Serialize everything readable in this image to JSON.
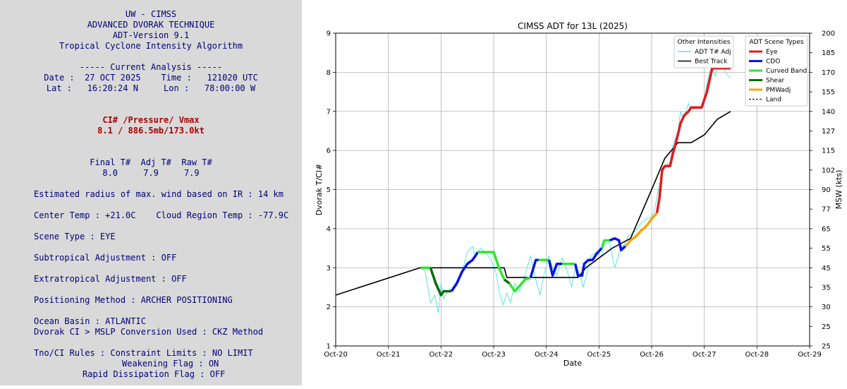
{
  "analysis_panel": {
    "header1": "UW - CIMSS",
    "header2": "ADVANCED DVORAK TECHNIQUE",
    "header3": "ADT-Version 9.1",
    "header4": "Tropical Cyclone Intensity Algorithm",
    "current_analysis": "----- Current Analysis -----",
    "date_time": "Date :  27 OCT 2025    Time :   121020 UTC",
    "lat_lon": "Lat :   16:20:24 N     Lon :   78:00:00 W",
    "ci_header": "CI# /Pressure/ Vmax",
    "ci_values": "8.1 / 886.5mb/173.0kt",
    "tnum_header": "Final T#  Adj T#  Raw T#",
    "tnum_values": "8.0     7.9     7.9",
    "radius": "Estimated radius of max. wind based on IR : 14 km",
    "temps": "Center Temp : +21.0C    Cloud Region Temp : -77.9C",
    "scene_type": "Scene Type : EYE",
    "subtropical": "Subtropical Adjustment : OFF",
    "extratropical": "Extratropical Adjustment : OFF",
    "positioning": "Positioning Method : ARCHER POSITIONING",
    "ocean_basin": "Ocean Basin : ATLANTIC",
    "conversion": "Dvorak CI > MSLP Conversion Used : CKZ Method",
    "tno_rules": "Tno/CI Rules : Constraint Limits : NO LIMIT",
    "weakening": "Weakening Flag : ON",
    "rapid": "Rapid Dissipation Flag : OFF"
  },
  "chart_data": {
    "type": "line",
    "title": "CIMSS ADT for 13L (2025)",
    "xlabel": "Date",
    "ylabel": "Dvorak T/CI#",
    "ylabel_right": "MSW (kts)",
    "xlim": [
      0,
      9
    ],
    "ylim": [
      1,
      9
    ],
    "x_ticks": [
      "Oct-20",
      "Oct-21",
      "Oct-22",
      "Oct-23",
      "Oct-24",
      "Oct-25",
      "Oct-26",
      "Oct-27",
      "Oct-28",
      "Oct-29"
    ],
    "y_ticks": [
      "1",
      "2",
      "3",
      "4",
      "5",
      "6",
      "7",
      "8",
      "9"
    ],
    "y2_ticks": [
      {
        "v": 1,
        "t": "25"
      },
      {
        "v": 1.5,
        "t": "25"
      },
      {
        "v": 2,
        "t": "30"
      },
      {
        "v": 2.5,
        "t": "35"
      },
      {
        "v": 3,
        "t": "45"
      },
      {
        "v": 3.5,
        "t": "55"
      },
      {
        "v": 4,
        "t": "65"
      },
      {
        "v": 4.5,
        "t": "77"
      },
      {
        "v": 5,
        "t": "90"
      },
      {
        "v": 5.5,
        "t": "102"
      },
      {
        "v": 6,
        "t": "115"
      },
      {
        "v": 6.5,
        "t": "127"
      },
      {
        "v": 7,
        "t": "140"
      },
      {
        "v": 7.5,
        "t": "155"
      },
      {
        "v": 8,
        "t": "170"
      },
      {
        "v": 8.5,
        "t": "185"
      },
      {
        "v": 9,
        "t": "200"
      }
    ],
    "grid": true,
    "legend_intensity": {
      "title": "Other Intensities",
      "items": [
        {
          "label": "ADT T# Adj",
          "color": "#5fe3e3",
          "dash": ""
        },
        {
          "label": "Best Track",
          "color": "#000000",
          "dash": ""
        }
      ]
    },
    "legend_scene": {
      "title": "ADT Scene Types",
      "items": [
        {
          "label": "Eye",
          "color": "#e31a1c",
          "dash": ""
        },
        {
          "label": "CDO",
          "color": "#0a14e0",
          "dash": ""
        },
        {
          "label": "Curved Band",
          "color": "#2ee82e",
          "dash": ""
        },
        {
          "label": "Shear",
          "color": "#0b6b0b",
          "dash": ""
        },
        {
          "label": "PMWadj",
          "color": "#f5a30c",
          "dash": ""
        },
        {
          "label": "Land",
          "color": "#000000",
          "dash": "3,2"
        }
      ]
    },
    "best_track": [
      [
        0,
        2.3
      ],
      [
        1.6,
        3.0
      ],
      [
        3.2,
        3.0
      ],
      [
        3.25,
        2.75
      ],
      [
        4.6,
        2.75
      ],
      [
        4.75,
        3.0
      ],
      [
        5.25,
        3.5
      ],
      [
        5.6,
        3.75
      ],
      [
        6.0,
        5.0
      ],
      [
        6.25,
        5.8
      ],
      [
        6.5,
        6.2
      ],
      [
        6.75,
        6.2
      ],
      [
        7.0,
        6.4
      ],
      [
        7.25,
        6.8
      ],
      [
        7.5,
        7.0
      ]
    ],
    "adt_raw": [
      [
        1.62,
        3.0
      ],
      [
        1.7,
        2.9
      ],
      [
        1.75,
        2.5
      ],
      [
        1.8,
        2.1
      ],
      [
        1.88,
        2.3
      ],
      [
        1.95,
        1.85
      ],
      [
        2.0,
        2.6
      ],
      [
        2.05,
        2.2
      ],
      [
        2.12,
        2.4
      ],
      [
        2.2,
        2.45
      ],
      [
        2.3,
        2.65
      ],
      [
        2.4,
        2.9
      ],
      [
        2.5,
        3.4
      ],
      [
        2.6,
        3.55
      ],
      [
        2.65,
        3.3
      ],
      [
        2.75,
        3.5
      ],
      [
        2.85,
        3.4
      ],
      [
        2.95,
        3.2
      ],
      [
        3.05,
        2.85
      ],
      [
        3.1,
        2.4
      ],
      [
        3.18,
        2.05
      ],
      [
        3.25,
        2.35
      ],
      [
        3.32,
        2.1
      ],
      [
        3.4,
        2.6
      ],
      [
        3.5,
        2.4
      ],
      [
        3.6,
        2.85
      ],
      [
        3.7,
        3.3
      ],
      [
        3.8,
        2.7
      ],
      [
        3.88,
        2.3
      ],
      [
        3.95,
        2.8
      ],
      [
        4.05,
        3.3
      ],
      [
        4.12,
        3.0
      ],
      [
        4.2,
        2.8
      ],
      [
        4.3,
        3.25
      ],
      [
        4.4,
        2.9
      ],
      [
        4.48,
        2.5
      ],
      [
        4.55,
        3.0
      ],
      [
        4.62,
        2.9
      ],
      [
        4.7,
        2.5
      ],
      [
        4.78,
        2.9
      ],
      [
        4.85,
        3.3
      ],
      [
        4.95,
        3.4
      ],
      [
        5.05,
        3.3
      ],
      [
        5.1,
        3.6
      ],
      [
        5.2,
        3.65
      ],
      [
        5.3,
        3.0
      ],
      [
        5.4,
        3.45
      ],
      [
        5.5,
        3.65
      ],
      [
        5.55,
        3.8
      ],
      [
        5.7,
        3.95
      ],
      [
        5.8,
        4.15
      ],
      [
        5.9,
        4.25
      ],
      [
        6.0,
        4.3
      ],
      [
        6.05,
        4.45
      ],
      [
        6.1,
        4.8
      ],
      [
        6.18,
        5.3
      ],
      [
        6.25,
        5.6
      ],
      [
        6.35,
        5.7
      ],
      [
        6.4,
        6.1
      ],
      [
        6.5,
        6.5
      ],
      [
        6.55,
        7.0
      ],
      [
        6.6,
        6.8
      ],
      [
        6.7,
        7.2
      ],
      [
        6.75,
        7.0
      ],
      [
        6.85,
        7.1
      ],
      [
        6.95,
        7.1
      ],
      [
        7.0,
        7.3
      ],
      [
        7.05,
        7.7
      ],
      [
        7.1,
        8.0
      ],
      [
        7.15,
        8.2
      ],
      [
        7.2,
        7.9
      ],
      [
        7.3,
        8.3
      ],
      [
        7.4,
        8.0
      ],
      [
        7.5,
        7.85
      ]
    ],
    "adt_scene_segments": [
      {
        "scene": "Curved Band",
        "points": [
          [
            1.62,
            3.0
          ],
          [
            1.8,
            3.0
          ]
        ]
      },
      {
        "scene": "Shear",
        "points": [
          [
            1.8,
            3.0
          ],
          [
            1.9,
            2.6
          ],
          [
            2.0,
            2.3
          ],
          [
            2.05,
            2.4
          ],
          [
            2.2,
            2.4
          ]
        ]
      },
      {
        "scene": "CDO",
        "points": [
          [
            2.2,
            2.4
          ],
          [
            2.3,
            2.6
          ],
          [
            2.4,
            2.9
          ],
          [
            2.5,
            3.1
          ],
          [
            2.6,
            3.2
          ],
          [
            2.7,
            3.4
          ]
        ]
      },
      {
        "scene": "Curved Band",
        "points": [
          [
            2.7,
            3.4
          ],
          [
            3.0,
            3.4
          ],
          [
            3.1,
            3.0
          ],
          [
            3.2,
            2.7
          ]
        ]
      },
      {
        "scene": "Shear",
        "points": [
          [
            3.2,
            2.7
          ],
          [
            3.3,
            2.6
          ]
        ]
      },
      {
        "scene": "Curved Band",
        "points": [
          [
            3.3,
            2.6
          ],
          [
            3.4,
            2.4
          ],
          [
            3.5,
            2.55
          ],
          [
            3.6,
            2.7
          ],
          [
            3.7,
            2.75
          ]
        ]
      },
      {
        "scene": "CDO",
        "points": [
          [
            3.7,
            2.75
          ],
          [
            3.8,
            3.2
          ],
          [
            3.85,
            3.2
          ]
        ]
      },
      {
        "scene": "Curved Band",
        "points": [
          [
            3.85,
            3.2
          ],
          [
            4.05,
            3.2
          ]
        ]
      },
      {
        "scene": "CDO",
        "points": [
          [
            4.05,
            3.2
          ],
          [
            4.12,
            2.8
          ],
          [
            4.2,
            3.1
          ],
          [
            4.3,
            3.1
          ]
        ]
      },
      {
        "scene": "Curved Band",
        "points": [
          [
            4.3,
            3.1
          ],
          [
            4.55,
            3.1
          ]
        ]
      },
      {
        "scene": "CDO",
        "points": [
          [
            4.55,
            3.1
          ],
          [
            4.6,
            2.8
          ],
          [
            4.68,
            2.8
          ],
          [
            4.72,
            3.1
          ],
          [
            4.8,
            3.2
          ],
          [
            4.88,
            3.2
          ],
          [
            4.95,
            3.35
          ],
          [
            5.05,
            3.5
          ]
        ]
      },
      {
        "scene": "Curved Band",
        "points": [
          [
            5.05,
            3.5
          ],
          [
            5.1,
            3.7
          ],
          [
            5.2,
            3.7
          ]
        ]
      },
      {
        "scene": "CDO",
        "points": [
          [
            5.2,
            3.7
          ],
          [
            5.3,
            3.75
          ],
          [
            5.38,
            3.7
          ],
          [
            5.42,
            3.45
          ],
          [
            5.5,
            3.55
          ]
        ]
      },
      {
        "scene": "PMWadj",
        "points": [
          [
            5.5,
            3.55
          ],
          [
            5.6,
            3.7
          ],
          [
            5.7,
            3.8
          ],
          [
            5.8,
            3.95
          ],
          [
            5.85,
            4.0
          ],
          [
            5.92,
            4.1
          ],
          [
            6.0,
            4.25
          ],
          [
            6.1,
            4.4
          ]
        ]
      },
      {
        "scene": "Eye",
        "points": [
          [
            6.1,
            4.4
          ],
          [
            6.15,
            4.8
          ],
          [
            6.2,
            5.5
          ],
          [
            6.25,
            5.6
          ],
          [
            6.35,
            5.6
          ],
          [
            6.4,
            5.9
          ],
          [
            6.48,
            6.3
          ],
          [
            6.55,
            6.7
          ],
          [
            6.62,
            6.9
          ],
          [
            6.7,
            7.0
          ],
          [
            6.75,
            7.1
          ],
          [
            6.95,
            7.1
          ],
          [
            7.05,
            7.5
          ],
          [
            7.1,
            7.8
          ],
          [
            7.15,
            8.1
          ],
          [
            7.5,
            8.1
          ]
        ]
      }
    ]
  }
}
